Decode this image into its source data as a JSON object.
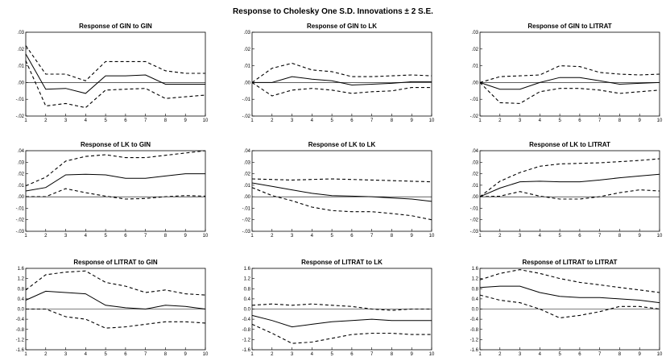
{
  "title": "Response to Cholesky One S.D. Innovations ± 2 S.E.",
  "chart_data": [
    {
      "type": "line",
      "title": "Response of GIN to GIN",
      "x": [
        1,
        2,
        3,
        4,
        5,
        6,
        7,
        8,
        9,
        10
      ],
      "yticks": [
        ".03",
        ".02",
        ".01",
        ".00",
        "-.01",
        "-.02"
      ],
      "ylim": [
        -0.02,
        0.03
      ],
      "series": [
        {
          "style": "solid",
          "values": [
            0.017,
            -0.004,
            -0.0035,
            -0.0065,
            0.004,
            0.004,
            0.0045,
            -0.001,
            -0.001,
            -0.001
          ]
        },
        {
          "style": "dashed",
          "values": [
            0.022,
            0.005,
            0.005,
            0.001,
            0.0125,
            0.0125,
            0.0125,
            0.007,
            0.0055,
            0.0055
          ]
        },
        {
          "style": "dashed",
          "values": [
            0.013,
            -0.014,
            -0.0125,
            -0.015,
            -0.0045,
            -0.004,
            -0.0035,
            -0.0095,
            -0.0085,
            -0.0075
          ]
        }
      ]
    },
    {
      "type": "line",
      "title": "Response of GIN to LK",
      "x": [
        1,
        2,
        3,
        4,
        5,
        6,
        7,
        8,
        9,
        10
      ],
      "yticks": [
        ".03",
        ".02",
        ".01",
        ".00",
        "-.01",
        "-.02"
      ],
      "ylim": [
        -0.02,
        0.03
      ],
      "series": [
        {
          "style": "solid",
          "values": [
            0,
            0,
            0.0035,
            0.002,
            0.001,
            -0.0015,
            -0.001,
            -0.0005,
            0.0005,
            0.0005
          ]
        },
        {
          "style": "dashed",
          "values": [
            0,
            0.0085,
            0.0115,
            0.0075,
            0.0065,
            0.0035,
            0.0035,
            0.004,
            0.0045,
            0.004
          ]
        },
        {
          "style": "dashed",
          "values": [
            0,
            -0.008,
            -0.0045,
            -0.0035,
            -0.0045,
            -0.0065,
            -0.0055,
            -0.005,
            -0.003,
            -0.003
          ]
        }
      ]
    },
    {
      "type": "line",
      "title": "Response of GIN to LITRAT",
      "x": [
        1,
        2,
        3,
        4,
        5,
        6,
        7,
        8,
        9,
        10
      ],
      "yticks": [
        ".03",
        ".02",
        ".01",
        ".00",
        "-.01",
        "-.02"
      ],
      "ylim": [
        -0.02,
        0.03
      ],
      "series": [
        {
          "style": "solid",
          "values": [
            0,
            -0.004,
            -0.004,
            0,
            0.003,
            0.003,
            0.001,
            -0.001,
            -0.0005,
            0
          ]
        },
        {
          "style": "dashed",
          "values": [
            0,
            0.0035,
            0.004,
            0.0045,
            0.01,
            0.0095,
            0.006,
            0.005,
            0.0045,
            0.005
          ]
        },
        {
          "style": "dashed",
          "values": [
            0,
            -0.012,
            -0.0125,
            -0.0055,
            -0.0035,
            -0.0035,
            -0.0045,
            -0.0065,
            -0.0055,
            -0.0045
          ]
        }
      ]
    },
    {
      "type": "line",
      "title": "Response of LK to GIN",
      "x": [
        1,
        2,
        3,
        4,
        5,
        6,
        7,
        8,
        9,
        10
      ],
      "yticks": [
        ".04",
        ".03",
        ".02",
        ".01",
        ".00",
        "-.01",
        "-.02",
        "-.03"
      ],
      "ylim": [
        -0.03,
        0.04
      ],
      "series": [
        {
          "style": "solid",
          "values": [
            0.005,
            0.008,
            0.019,
            0.0195,
            0.019,
            0.016,
            0.016,
            0.018,
            0.02,
            0.02
          ]
        },
        {
          "style": "dashed",
          "values": [
            0.0095,
            0.017,
            0.031,
            0.035,
            0.0365,
            0.034,
            0.034,
            0.036,
            0.038,
            0.04
          ]
        },
        {
          "style": "dashed",
          "values": [
            0,
            0,
            0.007,
            0.0035,
            0.0005,
            -0.002,
            -0.0015,
            0,
            0.001,
            0.0005
          ]
        }
      ]
    },
    {
      "type": "line",
      "title": "Response of LK to LK",
      "x": [
        1,
        2,
        3,
        4,
        5,
        6,
        7,
        8,
        9,
        10
      ],
      "yticks": [
        ".04",
        ".03",
        ".02",
        ".01",
        ".00",
        "-.01",
        "-.02",
        "-.03"
      ],
      "ylim": [
        -0.03,
        0.04
      ],
      "series": [
        {
          "style": "solid",
          "values": [
            0.012,
            0.009,
            0.006,
            0.003,
            0.001,
            0.0005,
            0,
            -0.001,
            -0.002,
            -0.004
          ]
        },
        {
          "style": "dashed",
          "values": [
            0.0155,
            0.015,
            0.0145,
            0.015,
            0.0155,
            0.015,
            0.0145,
            0.014,
            0.0135,
            0.013
          ]
        },
        {
          "style": "dashed",
          "values": [
            0.008,
            0.001,
            -0.0035,
            -0.009,
            -0.012,
            -0.013,
            -0.013,
            -0.0145,
            -0.0165,
            -0.02
          ]
        }
      ]
    },
    {
      "type": "line",
      "title": "Response of LK to LITRAT",
      "x": [
        1,
        2,
        3,
        4,
        5,
        6,
        7,
        8,
        9,
        10
      ],
      "yticks": [
        ".04",
        ".03",
        ".02",
        ".01",
        ".00",
        "-.01",
        "-.02",
        "-.03"
      ],
      "ylim": [
        -0.03,
        0.04
      ],
      "series": [
        {
          "style": "solid",
          "values": [
            0,
            0.0075,
            0.013,
            0.0135,
            0.013,
            0.013,
            0.0145,
            0.0165,
            0.018,
            0.0195
          ]
        },
        {
          "style": "dashed",
          "values": [
            0,
            0.0135,
            0.021,
            0.0265,
            0.0285,
            0.029,
            0.0295,
            0.0305,
            0.0315,
            0.033
          ]
        },
        {
          "style": "dashed",
          "values": [
            0,
            0.0005,
            0.0045,
            0.0005,
            -0.002,
            -0.002,
            0,
            0.0035,
            0.006,
            0.005
          ]
        }
      ]
    },
    {
      "type": "line",
      "title": "Response of LITRAT to GIN",
      "x": [
        1,
        2,
        3,
        4,
        5,
        6,
        7,
        8,
        9,
        10
      ],
      "yticks": [
        "1.6",
        "1.2",
        "0.8",
        "0.4",
        "0.0",
        "-0.4",
        "-0.8",
        "-1.2",
        "-1.6"
      ],
      "ylim": [
        -1.6,
        1.6
      ],
      "series": [
        {
          "style": "solid",
          "values": [
            0.35,
            0.7,
            0.65,
            0.6,
            0.15,
            0.05,
            0,
            0.15,
            0.1,
            0
          ]
        },
        {
          "style": "dashed",
          "values": [
            0.75,
            1.35,
            1.45,
            1.5,
            1.05,
            0.9,
            0.65,
            0.75,
            0.6,
            0.55
          ]
        },
        {
          "style": "dashed",
          "values": [
            0,
            0,
            -0.3,
            -0.4,
            -0.75,
            -0.7,
            -0.6,
            -0.5,
            -0.5,
            -0.55
          ]
        }
      ]
    },
    {
      "type": "line",
      "title": "Response of LITRAT to LK",
      "x": [
        1,
        2,
        3,
        4,
        5,
        6,
        7,
        8,
        9,
        10
      ],
      "yticks": [
        "1.6",
        "1.2",
        "0.8",
        "0.4",
        "0.0",
        "-0.4",
        "-0.8",
        "-1.2",
        "-1.6"
      ],
      "ylim": [
        -1.6,
        1.6
      ],
      "series": [
        {
          "style": "solid",
          "values": [
            -0.25,
            -0.45,
            -0.7,
            -0.6,
            -0.5,
            -0.45,
            -0.4,
            -0.45,
            -0.45,
            -0.45
          ]
        },
        {
          "style": "dashed",
          "values": [
            0.15,
            0.2,
            0.15,
            0.2,
            0.15,
            0.1,
            0,
            -0.05,
            0,
            0
          ]
        },
        {
          "style": "dashed",
          "values": [
            -0.6,
            -0.95,
            -1.35,
            -1.3,
            -1.15,
            -1.0,
            -0.95,
            -0.95,
            -1.0,
            -1.0
          ]
        }
      ]
    },
    {
      "type": "line",
      "title": "Response of LITRAT to LITRAT",
      "x": [
        1,
        2,
        3,
        4,
        5,
        6,
        7,
        8,
        9,
        10
      ],
      "yticks": [
        "1.6",
        "1.2",
        "0.8",
        "0.4",
        "0.0",
        "-0.4",
        "-0.8",
        "-1.2",
        "-1.6"
      ],
      "ylim": [
        -1.6,
        1.6
      ],
      "series": [
        {
          "style": "solid",
          "values": [
            0.85,
            0.9,
            0.9,
            0.65,
            0.5,
            0.45,
            0.45,
            0.4,
            0.35,
            0.25
          ]
        },
        {
          "style": "dashed",
          "values": [
            1.15,
            1.4,
            1.55,
            1.4,
            1.2,
            1.05,
            0.95,
            0.85,
            0.75,
            0.65
          ]
        },
        {
          "style": "dashed",
          "values": [
            0.55,
            0.35,
            0.25,
            0,
            -0.35,
            -0.25,
            -0.1,
            0.1,
            0.1,
            0
          ]
        }
      ]
    }
  ]
}
